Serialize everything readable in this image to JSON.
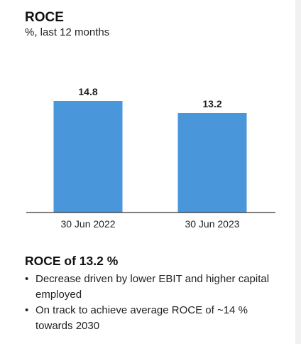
{
  "header": {
    "title": "ROCE",
    "subtitle": "%, last 12 months"
  },
  "colors": {
    "bar": "#4a96db",
    "axis": "#333333",
    "text": "#1f1f1f"
  },
  "chart_data": {
    "type": "bar",
    "title": "ROCE",
    "subtitle": "%, last 12 months",
    "categories": [
      "30 Jun 2022",
      "30 Jun 2023"
    ],
    "values": [
      14.8,
      13.2
    ],
    "value_labels": [
      "14.8",
      "13.2"
    ],
    "ylim": [
      0,
      14.8
    ],
    "grid": false,
    "legend": "none"
  },
  "summary": {
    "title": "ROCE of 13.2 %",
    "bullet_symbol": "•",
    "bullets": [
      "Decrease driven by lower EBIT and higher capital employed",
      "On track to achieve average ROCE of ~14 % towards 2030"
    ]
  }
}
